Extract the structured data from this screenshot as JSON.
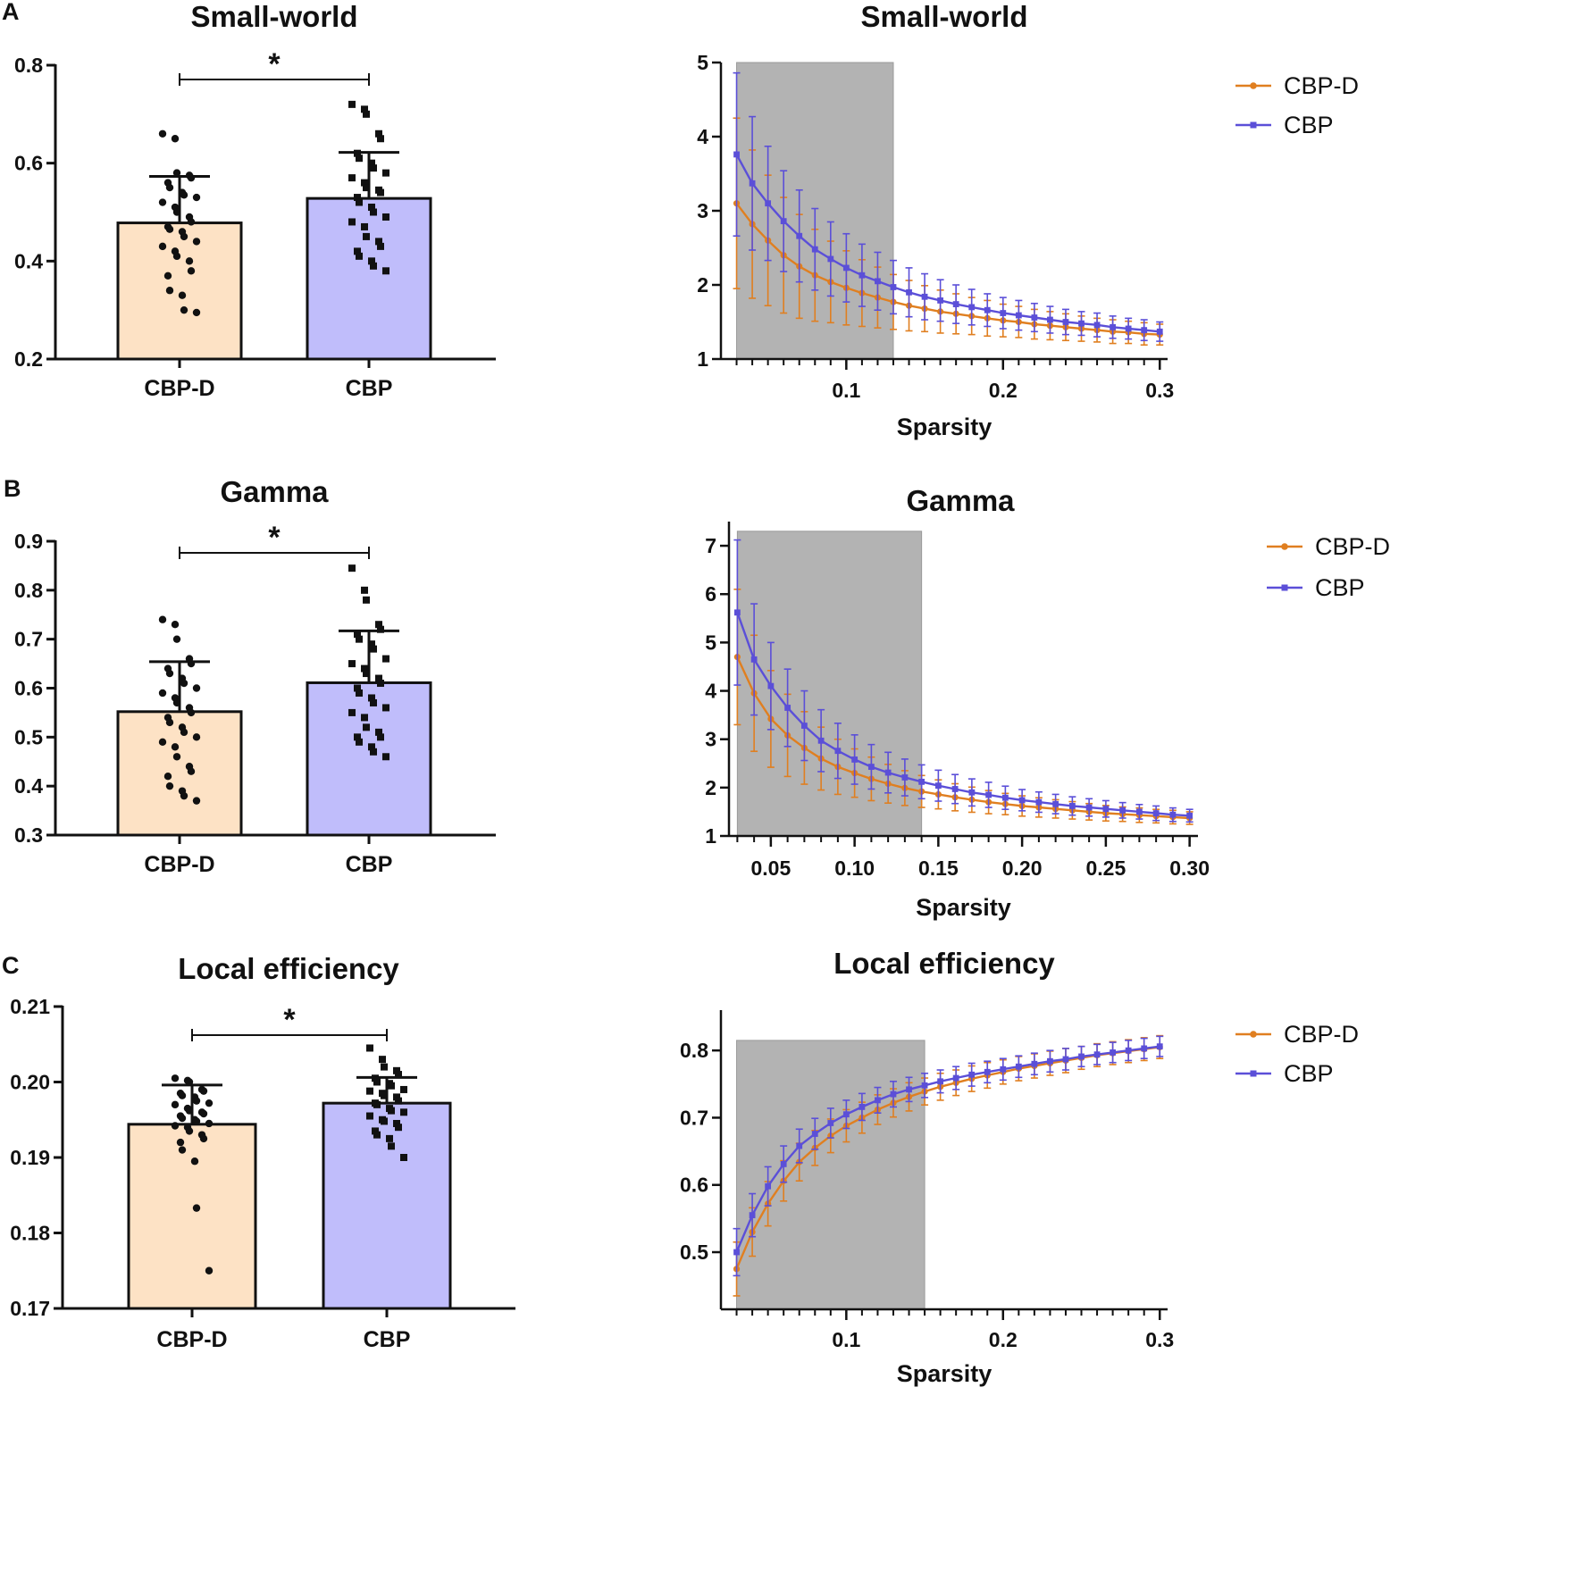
{
  "colors": {
    "cbpd_fill": "#fde2c5",
    "cbp_fill": "#c0bdfb",
    "cbpd_line": "#e07f20",
    "cbp_line": "#5b4fd8",
    "shade": "#b3b3b3",
    "ink": "#111111"
  },
  "chart_data": [
    {
      "id": "A-bar",
      "panel_label": "A",
      "type": "bar",
      "title": "Small-world",
      "categories": [
        "CBP-D",
        "CBP"
      ],
      "values": [
        0.478,
        0.528
      ],
      "sd": [
        0.095,
        0.094
      ],
      "ylim": [
        0.2,
        0.8
      ],
      "yticks": [
        0.2,
        0.4,
        0.6,
        0.8
      ],
      "ytick_labels": [
        "0.2",
        "0.4",
        "0.6",
        "0.8"
      ],
      "significance": "*",
      "points": [
        [
          0.66,
          0.65,
          0.58,
          0.575,
          0.57,
          0.56,
          0.55,
          0.54,
          0.535,
          0.53,
          0.52,
          0.51,
          0.5,
          0.49,
          0.48,
          0.47,
          0.465,
          0.46,
          0.45,
          0.44,
          0.43,
          0.42,
          0.41,
          0.4,
          0.38,
          0.37,
          0.34,
          0.33,
          0.3,
          0.295
        ],
        [
          0.72,
          0.71,
          0.7,
          0.66,
          0.65,
          0.62,
          0.61,
          0.6,
          0.59,
          0.58,
          0.57,
          0.56,
          0.55,
          0.545,
          0.54,
          0.53,
          0.52,
          0.51,
          0.5,
          0.49,
          0.48,
          0.47,
          0.45,
          0.44,
          0.43,
          0.42,
          0.41,
          0.4,
          0.39,
          0.38
        ]
      ]
    },
    {
      "id": "A-line",
      "type": "line",
      "title": "Small-world",
      "xlabel": "Sparsity",
      "xlim": [
        0.02,
        0.305
      ],
      "ylim": [
        1,
        5
      ],
      "xticks": [
        0.1,
        0.2,
        0.3
      ],
      "xtick_labels": [
        "0.1",
        "0.2",
        "0.3"
      ],
      "yticks": [
        1,
        2,
        3,
        4,
        5
      ],
      "ytick_labels": [
        "1",
        "2",
        "3",
        "4",
        "5"
      ],
      "shade": [
        0.03,
        0.13
      ],
      "shade_top": 5,
      "legend": [
        "CBP-D",
        "CBP"
      ],
      "x": [
        0.03,
        0.04,
        0.05,
        0.06,
        0.07,
        0.08,
        0.09,
        0.1,
        0.11,
        0.12,
        0.13,
        0.14,
        0.15,
        0.16,
        0.17,
        0.18,
        0.19,
        0.2,
        0.21,
        0.22,
        0.23,
        0.24,
        0.25,
        0.26,
        0.27,
        0.28,
        0.29,
        0.3
      ],
      "series": [
        {
          "name": "CBP-D",
          "values": [
            3.1,
            2.82,
            2.6,
            2.4,
            2.25,
            2.13,
            2.04,
            1.96,
            1.89,
            1.83,
            1.77,
            1.72,
            1.68,
            1.64,
            1.61,
            1.58,
            1.55,
            1.52,
            1.5,
            1.47,
            1.45,
            1.43,
            1.41,
            1.39,
            1.37,
            1.36,
            1.34,
            1.33
          ],
          "err": [
            1.15,
            1.0,
            0.88,
            0.78,
            0.7,
            0.62,
            0.55,
            0.5,
            0.45,
            0.41,
            0.37,
            0.34,
            0.31,
            0.29,
            0.27,
            0.25,
            0.24,
            0.22,
            0.21,
            0.2,
            0.19,
            0.18,
            0.17,
            0.16,
            0.16,
            0.15,
            0.15,
            0.14
          ]
        },
        {
          "name": "CBP",
          "values": [
            3.76,
            3.37,
            3.1,
            2.86,
            2.66,
            2.48,
            2.35,
            2.23,
            2.13,
            2.05,
            1.97,
            1.9,
            1.84,
            1.79,
            1.74,
            1.7,
            1.66,
            1.62,
            1.59,
            1.56,
            1.53,
            1.5,
            1.48,
            1.46,
            1.43,
            1.41,
            1.39,
            1.37
          ],
          "err": [
            1.1,
            0.9,
            0.77,
            0.68,
            0.62,
            0.55,
            0.5,
            0.46,
            0.42,
            0.39,
            0.36,
            0.33,
            0.31,
            0.28,
            0.26,
            0.24,
            0.22,
            0.21,
            0.2,
            0.19,
            0.18,
            0.17,
            0.16,
            0.16,
            0.15,
            0.14,
            0.14,
            0.13
          ]
        }
      ]
    },
    {
      "id": "B-bar",
      "panel_label": "B",
      "type": "bar",
      "title": "Gamma",
      "categories": [
        "CBP-D",
        "CBP"
      ],
      "values": [
        0.552,
        0.611
      ],
      "sd": [
        0.102,
        0.106
      ],
      "ylim": [
        0.3,
        0.9
      ],
      "yticks": [
        0.3,
        0.4,
        0.5,
        0.6,
        0.7,
        0.8,
        0.9
      ],
      "ytick_labels": [
        "0.3",
        "0.4",
        "0.5",
        "0.6",
        "0.7",
        "0.8",
        "0.9"
      ],
      "significance": "*",
      "points": [
        [
          0.74,
          0.73,
          0.7,
          0.66,
          0.65,
          0.64,
          0.63,
          0.62,
          0.61,
          0.6,
          0.59,
          0.58,
          0.57,
          0.56,
          0.55,
          0.54,
          0.53,
          0.52,
          0.51,
          0.5,
          0.49,
          0.48,
          0.46,
          0.44,
          0.43,
          0.42,
          0.4,
          0.39,
          0.38,
          0.37
        ],
        [
          0.845,
          0.8,
          0.78,
          0.73,
          0.72,
          0.71,
          0.7,
          0.69,
          0.68,
          0.66,
          0.65,
          0.64,
          0.63,
          0.62,
          0.61,
          0.6,
          0.59,
          0.58,
          0.57,
          0.56,
          0.55,
          0.54,
          0.52,
          0.51,
          0.5,
          0.5,
          0.49,
          0.48,
          0.47,
          0.46
        ]
      ]
    },
    {
      "id": "B-line",
      "type": "line",
      "title": "Gamma",
      "xlabel": "Sparsity",
      "xlim": [
        0.025,
        0.305
      ],
      "ylim": [
        1,
        7.5
      ],
      "xticks": [
        0.05,
        0.1,
        0.15,
        0.2,
        0.25,
        0.3
      ],
      "xtick_labels": [
        "0.05",
        "0.10",
        "0.15",
        "0.20",
        "0.25",
        "0.30"
      ],
      "yticks": [
        1,
        2,
        3,
        4,
        5,
        6,
        7
      ],
      "ytick_labels": [
        "1",
        "2",
        "3",
        "4",
        "5",
        "6",
        "7"
      ],
      "shade": [
        0.03,
        0.14
      ],
      "shade_top": 7.3,
      "legend": [
        "CBP-D",
        "CBP"
      ],
      "x": [
        0.03,
        0.04,
        0.05,
        0.06,
        0.07,
        0.08,
        0.09,
        0.1,
        0.11,
        0.12,
        0.13,
        0.14,
        0.15,
        0.16,
        0.17,
        0.18,
        0.19,
        0.2,
        0.21,
        0.22,
        0.23,
        0.24,
        0.25,
        0.26,
        0.27,
        0.28,
        0.29,
        0.3
      ],
      "series": [
        {
          "name": "CBP-D",
          "values": [
            4.7,
            3.95,
            3.42,
            3.08,
            2.82,
            2.6,
            2.43,
            2.3,
            2.18,
            2.08,
            1.99,
            1.92,
            1.86,
            1.8,
            1.75,
            1.7,
            1.66,
            1.62,
            1.59,
            1.56,
            1.53,
            1.5,
            1.47,
            1.45,
            1.43,
            1.41,
            1.39,
            1.37
          ],
          "err": [
            1.4,
            1.2,
            1.0,
            0.85,
            0.75,
            0.65,
            0.57,
            0.5,
            0.45,
            0.4,
            0.36,
            0.33,
            0.3,
            0.28,
            0.26,
            0.24,
            0.22,
            0.21,
            0.2,
            0.19,
            0.18,
            0.17,
            0.16,
            0.15,
            0.15,
            0.14,
            0.14,
            0.13
          ]
        },
        {
          "name": "CBP",
          "values": [
            5.62,
            4.65,
            4.1,
            3.65,
            3.28,
            2.97,
            2.76,
            2.58,
            2.43,
            2.31,
            2.21,
            2.12,
            2.04,
            1.97,
            1.9,
            1.85,
            1.79,
            1.74,
            1.7,
            1.66,
            1.62,
            1.59,
            1.56,
            1.53,
            1.5,
            1.47,
            1.44,
            1.42
          ],
          "err": [
            1.5,
            1.15,
            0.9,
            0.8,
            0.72,
            0.64,
            0.57,
            0.51,
            0.46,
            0.42,
            0.38,
            0.35,
            0.32,
            0.3,
            0.28,
            0.26,
            0.24,
            0.22,
            0.21,
            0.2,
            0.19,
            0.18,
            0.17,
            0.16,
            0.15,
            0.15,
            0.14,
            0.13
          ]
        }
      ]
    },
    {
      "id": "C-bar",
      "panel_label": "C",
      "type": "bar",
      "title": "Local efficiency",
      "categories": [
        "CBP-D",
        "CBP"
      ],
      "values": [
        0.1944,
        0.1972
      ],
      "sd": [
        0.0052,
        0.0034
      ],
      "ylim": [
        0.17,
        0.21
      ],
      "yticks": [
        0.17,
        0.18,
        0.19,
        0.2,
        0.21
      ],
      "ytick_labels": [
        "0.17",
        "0.18",
        "0.19",
        "0.20",
        "0.21"
      ],
      "significance": "*",
      "points": [
        [
          0.2005,
          0.2002,
          0.2,
          0.199,
          0.1988,
          0.1985,
          0.1982,
          0.198,
          0.1975,
          0.1972,
          0.197,
          0.1965,
          0.1962,
          0.196,
          0.1958,
          0.1955,
          0.1952,
          0.195,
          0.1948,
          0.1945,
          0.1942,
          0.194,
          0.1935,
          0.193,
          0.1925,
          0.192,
          0.191,
          0.1895,
          0.1833,
          0.175
        ],
        [
          0.2045,
          0.203,
          0.202,
          0.2015,
          0.201,
          0.2005,
          0.2,
          0.1998,
          0.1995,
          0.199,
          0.1988,
          0.1985,
          0.1982,
          0.198,
          0.1975,
          0.1972,
          0.197,
          0.1965,
          0.1962,
          0.196,
          0.1955,
          0.195,
          0.1948,
          0.1945,
          0.194,
          0.1935,
          0.193,
          0.1925,
          0.1915,
          0.19
        ]
      ]
    },
    {
      "id": "C-line",
      "type": "line",
      "title": "Local efficiency",
      "xlabel": "Sparsity",
      "xlim": [
        0.02,
        0.305
      ],
      "ylim": [
        0.415,
        0.86
      ],
      "xticks": [
        0.1,
        0.2,
        0.3
      ],
      "xtick_labels": [
        "0.1",
        "0.2",
        "0.3"
      ],
      "yticks": [
        0.5,
        0.6,
        0.7,
        0.8
      ],
      "ytick_labels": [
        "0.5",
        "0.6",
        "0.7",
        "0.8"
      ],
      "shade": [
        0.03,
        0.15
      ],
      "shade_top": 0.815,
      "legend": [
        "CBP-D",
        "CBP"
      ],
      "x": [
        0.03,
        0.04,
        0.05,
        0.06,
        0.07,
        0.08,
        0.09,
        0.1,
        0.11,
        0.12,
        0.13,
        0.14,
        0.15,
        0.16,
        0.17,
        0.18,
        0.19,
        0.2,
        0.21,
        0.22,
        0.23,
        0.24,
        0.25,
        0.26,
        0.27,
        0.28,
        0.29,
        0.3
      ],
      "series": [
        {
          "name": "CBP-D",
          "values": [
            0.475,
            0.53,
            0.572,
            0.606,
            0.634,
            0.655,
            0.673,
            0.688,
            0.7,
            0.712,
            0.722,
            0.731,
            0.739,
            0.746,
            0.752,
            0.758,
            0.763,
            0.768,
            0.773,
            0.777,
            0.781,
            0.785,
            0.789,
            0.793,
            0.796,
            0.799,
            0.802,
            0.805
          ],
          "err": [
            0.04,
            0.036,
            0.033,
            0.03,
            0.028,
            0.026,
            0.025,
            0.024,
            0.023,
            0.022,
            0.021,
            0.021,
            0.02,
            0.02,
            0.019,
            0.019,
            0.019,
            0.018,
            0.018,
            0.018,
            0.018,
            0.018,
            0.017,
            0.017,
            0.017,
            0.017,
            0.017,
            0.017
          ]
        },
        {
          "name": "CBP",
          "values": [
            0.5,
            0.555,
            0.598,
            0.631,
            0.658,
            0.676,
            0.692,
            0.705,
            0.716,
            0.726,
            0.735,
            0.742,
            0.748,
            0.754,
            0.759,
            0.764,
            0.768,
            0.772,
            0.776,
            0.78,
            0.784,
            0.787,
            0.791,
            0.794,
            0.797,
            0.8,
            0.803,
            0.806
          ],
          "err": [
            0.035,
            0.032,
            0.029,
            0.027,
            0.025,
            0.023,
            0.022,
            0.021,
            0.02,
            0.019,
            0.019,
            0.018,
            0.018,
            0.017,
            0.017,
            0.017,
            0.016,
            0.016,
            0.016,
            0.016,
            0.016,
            0.016,
            0.015,
            0.015,
            0.015,
            0.015,
            0.015,
            0.015
          ]
        }
      ]
    }
  ]
}
